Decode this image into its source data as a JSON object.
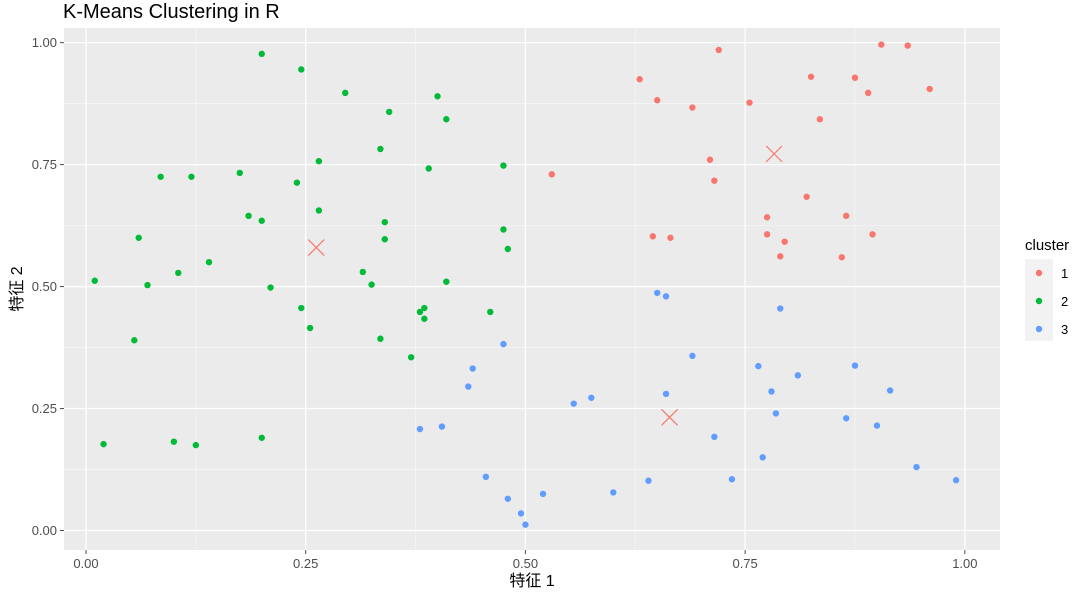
{
  "chart_data": {
    "type": "scatter",
    "title": "K-Means Clustering in R",
    "xlabel": "特征 1",
    "ylabel": "特征 2",
    "xlim": [
      -0.025,
      1.04
    ],
    "ylim": [
      -0.04,
      1.03
    ],
    "x_ticks": [
      0,
      0.25,
      0.5,
      0.75,
      1.0
    ],
    "y_ticks": [
      0,
      0.25,
      0.5,
      0.75,
      1.0
    ],
    "x_tick_labels": [
      "0.00",
      "0.25",
      "0.50",
      "0.75",
      "1.00"
    ],
    "y_tick_labels": [
      "0.00",
      "0.25",
      "0.50",
      "0.75",
      "1.00"
    ],
    "grid": true,
    "panel_background": "#ebebeb",
    "legend": {
      "title": "cluster",
      "position": "right"
    },
    "series": [
      {
        "name": "1",
        "color": "#F8766D",
        "points": [
          [
            0.63,
            0.925
          ],
          [
            0.65,
            0.882
          ],
          [
            0.69,
            0.867
          ],
          [
            0.72,
            0.985
          ],
          [
            0.755,
            0.877
          ],
          [
            0.825,
            0.93
          ],
          [
            0.835,
            0.843
          ],
          [
            0.875,
            0.928
          ],
          [
            0.89,
            0.897
          ],
          [
            0.905,
            0.996
          ],
          [
            0.935,
            0.994
          ],
          [
            0.96,
            0.905
          ],
          [
            0.71,
            0.76
          ],
          [
            0.715,
            0.717
          ],
          [
            0.53,
            0.73
          ],
          [
            0.82,
            0.684
          ],
          [
            0.865,
            0.645
          ],
          [
            0.775,
            0.642
          ],
          [
            0.775,
            0.607
          ],
          [
            0.645,
            0.603
          ],
          [
            0.665,
            0.6
          ],
          [
            0.795,
            0.592
          ],
          [
            0.79,
            0.562
          ],
          [
            0.86,
            0.56
          ],
          [
            0.895,
            0.607
          ]
        ]
      },
      {
        "name": "2",
        "color": "#00BA38",
        "points": [
          [
            0.2,
            0.977
          ],
          [
            0.245,
            0.945
          ],
          [
            0.295,
            0.897
          ],
          [
            0.4,
            0.89
          ],
          [
            0.345,
            0.858
          ],
          [
            0.41,
            0.843
          ],
          [
            0.335,
            0.782
          ],
          [
            0.265,
            0.757
          ],
          [
            0.39,
            0.742
          ],
          [
            0.475,
            0.748
          ],
          [
            0.085,
            0.725
          ],
          [
            0.12,
            0.725
          ],
          [
            0.175,
            0.733
          ],
          [
            0.24,
            0.713
          ],
          [
            0.265,
            0.656
          ],
          [
            0.185,
            0.645
          ],
          [
            0.2,
            0.635
          ],
          [
            0.34,
            0.632
          ],
          [
            0.06,
            0.6
          ],
          [
            0.34,
            0.597
          ],
          [
            0.475,
            0.617
          ],
          [
            0.48,
            0.577
          ],
          [
            0.14,
            0.55
          ],
          [
            0.105,
            0.528
          ],
          [
            0.315,
            0.53
          ],
          [
            0.01,
            0.512
          ],
          [
            0.41,
            0.51
          ],
          [
            0.07,
            0.503
          ],
          [
            0.21,
            0.498
          ],
          [
            0.325,
            0.504
          ],
          [
            0.245,
            0.456
          ],
          [
            0.385,
            0.456
          ],
          [
            0.38,
            0.448
          ],
          [
            0.46,
            0.448
          ],
          [
            0.385,
            0.434
          ],
          [
            0.255,
            0.415
          ],
          [
            0.055,
            0.39
          ],
          [
            0.335,
            0.393
          ],
          [
            0.37,
            0.355
          ],
          [
            0.02,
            0.177
          ],
          [
            0.1,
            0.182
          ],
          [
            0.125,
            0.175
          ],
          [
            0.2,
            0.19
          ]
        ]
      },
      {
        "name": "3",
        "color": "#619CFF",
        "points": [
          [
            0.65,
            0.487
          ],
          [
            0.66,
            0.48
          ],
          [
            0.79,
            0.455
          ],
          [
            0.475,
            0.382
          ],
          [
            0.69,
            0.358
          ],
          [
            0.765,
            0.337
          ],
          [
            0.875,
            0.338
          ],
          [
            0.44,
            0.332
          ],
          [
            0.81,
            0.318
          ],
          [
            0.435,
            0.295
          ],
          [
            0.66,
            0.28
          ],
          [
            0.78,
            0.285
          ],
          [
            0.915,
            0.287
          ],
          [
            0.575,
            0.272
          ],
          [
            0.555,
            0.26
          ],
          [
            0.785,
            0.24
          ],
          [
            0.865,
            0.23
          ],
          [
            0.9,
            0.215
          ],
          [
            0.38,
            0.208
          ],
          [
            0.405,
            0.213
          ],
          [
            0.715,
            0.192
          ],
          [
            0.77,
            0.15
          ],
          [
            0.945,
            0.13
          ],
          [
            0.455,
            0.11
          ],
          [
            0.735,
            0.105
          ],
          [
            0.99,
            0.103
          ],
          [
            0.64,
            0.102
          ],
          [
            0.6,
            0.078
          ],
          [
            0.52,
            0.075
          ],
          [
            0.48,
            0.065
          ],
          [
            0.495,
            0.035
          ],
          [
            0.5,
            0.012
          ]
        ]
      }
    ],
    "centers": [
      {
        "cluster": "1",
        "color": "#F8766D",
        "x": 0.783,
        "y": 0.772
      },
      {
        "cluster": "2",
        "color": "#F8766D",
        "x": 0.262,
        "y": 0.58
      },
      {
        "cluster": "3",
        "color": "#F8766D",
        "x": 0.664,
        "y": 0.232
      }
    ]
  }
}
